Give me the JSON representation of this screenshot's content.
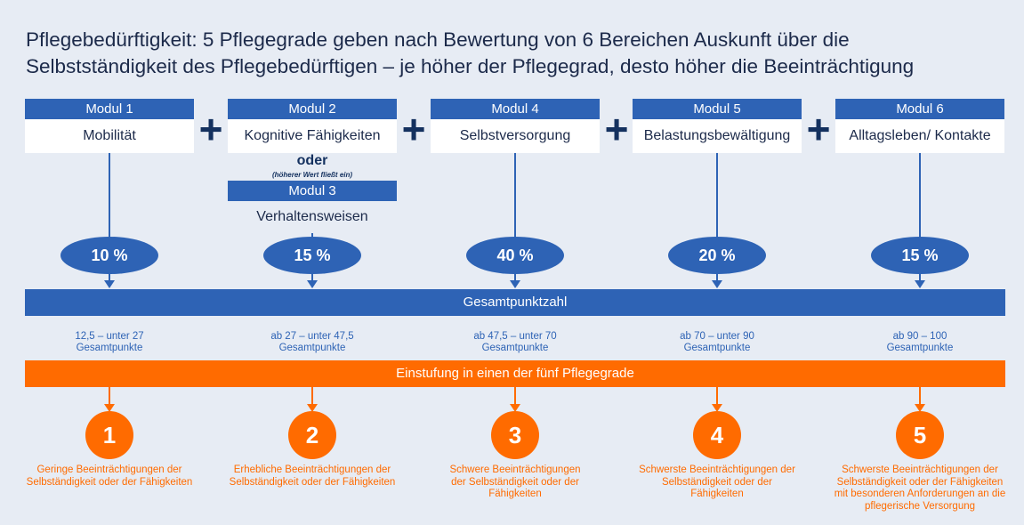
{
  "title": {
    "line1": "Pflegebedürftigkeit: 5 Pflegegrade geben nach Bewertung von 6 Bereichen Auskunft über die",
    "line2": "Selbstständigkeit des Pflegebedürftigen – je höher der Pflegegrad, desto höher die Beeinträchtigung"
  },
  "modules": [
    {
      "label": "Modul 1",
      "name": "Mobilität",
      "weight": "10 %"
    },
    {
      "label": "Modul 2",
      "name": "Kognitive Fähigkeiten",
      "weight": "15 %"
    },
    {
      "label": "Modul 4",
      "name": "Selbstversorgung",
      "weight": "40 %"
    },
    {
      "label": "Modul 5",
      "name": "Belastungsbewältigung",
      "weight": "20 %"
    },
    {
      "label": "Modul 6",
      "name": "Alltagsleben/ Kontakte",
      "weight": "15 %"
    }
  ],
  "alternative": {
    "oder": "oder",
    "note": "(höherer Wert fließt ein)",
    "label": "Modul 3",
    "name": "Verhaltensweisen"
  },
  "total_bar": "Gesamtpunktzahl",
  "ranges": [
    {
      "range": "12,5 – unter 27",
      "unit": "Gesamtpunkte"
    },
    {
      "range": "ab 27 – unter 47,5",
      "unit": "Gesamtpunkte"
    },
    {
      "range": "ab 47,5 – unter 70",
      "unit": "Gesamtpunkte"
    },
    {
      "range": "ab 70 – unter 90",
      "unit": "Gesamtpunkte"
    },
    {
      "range": "ab 90 – 100",
      "unit": "Gesamtpunkte"
    }
  ],
  "classification_bar": "Einstufung in einen der fünf Pflegegrade",
  "grades": [
    {
      "number": "1",
      "lines": [
        "Geringe Beeinträchtigungen der",
        "Selbständigkeit oder der Fähigkeiten"
      ]
    },
    {
      "number": "2",
      "lines": [
        "Erhebliche Beeinträchtigungen der",
        "Selbständigkeit oder der Fähigkeiten"
      ]
    },
    {
      "number": "3",
      "lines": [
        "Schwere Beeinträchtigungen",
        "der Selbständigkeit oder der",
        "Fähigkeiten"
      ]
    },
    {
      "number": "4",
      "lines": [
        "Schwerste Beeinträchtigungen der",
        "Selbständigkeit oder der",
        "Fähigkeiten"
      ]
    },
    {
      "number": "5",
      "lines": [
        "Schwerste Beeinträchtigungen der",
        "Selbständigkeit oder der Fähigkeiten",
        "mit besonderen Anforderungen an die",
        "pflegerische Versorgung"
      ]
    }
  ],
  "colors": {
    "blue": "#2e63b5",
    "navy": "#14315f",
    "orange": "#ff6b00",
    "background": "#e7ecf4"
  }
}
